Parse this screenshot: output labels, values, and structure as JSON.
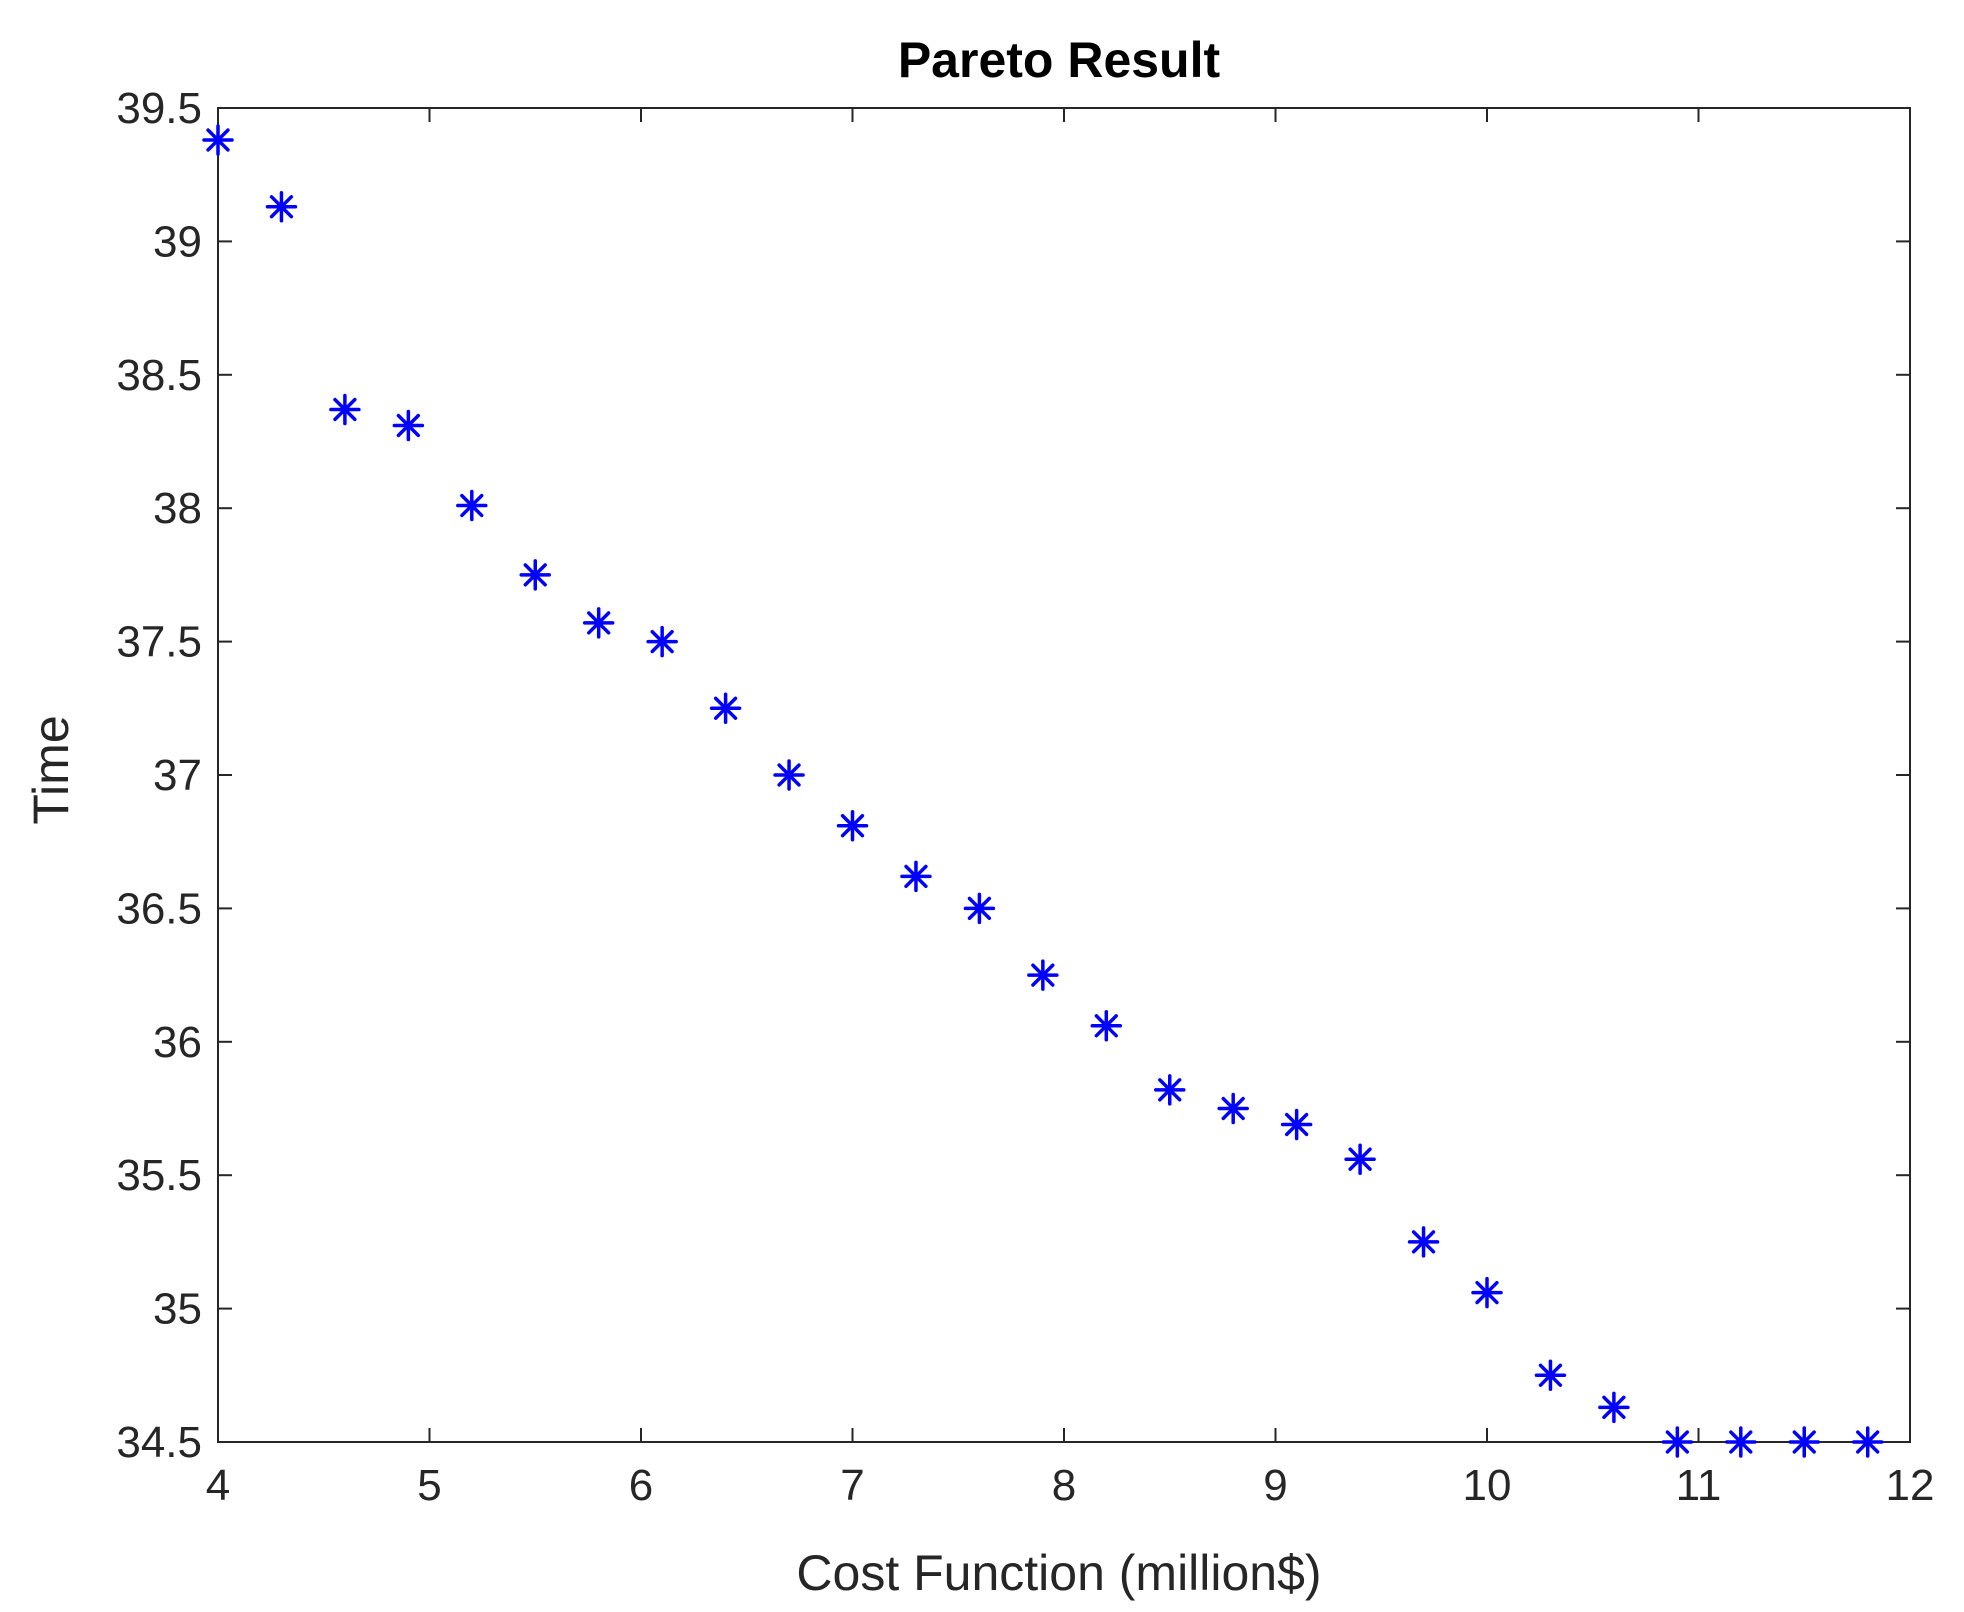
{
  "chart_data": {
    "type": "scatter",
    "title": "Pareto Result",
    "xlabel": "Cost Function (million$)",
    "ylabel": "Time",
    "xlim": [
      4,
      12
    ],
    "ylim": [
      34.5,
      39.5
    ],
    "x_ticks": [
      "4",
      "5",
      "6",
      "7",
      "8",
      "9",
      "10",
      "11",
      "12"
    ],
    "y_ticks": [
      "34.5",
      "35",
      "35.5",
      "36",
      "36.5",
      "37",
      "37.5",
      "38",
      "38.5",
      "39",
      "39.5"
    ],
    "grid": false,
    "marker": "asterisk",
    "marker_color": "#0000ff",
    "axis_color": "#262626",
    "x": [
      4.0,
      4.3,
      4.6,
      4.9,
      5.2,
      5.5,
      5.8,
      6.1,
      6.4,
      6.7,
      7.0,
      7.3,
      7.6,
      7.9,
      8.2,
      8.5,
      8.8,
      9.1,
      9.4,
      9.7,
      10.0,
      10.3,
      10.6,
      10.9,
      11.2,
      11.5,
      11.8
    ],
    "y": [
      39.38,
      39.13,
      38.37,
      38.31,
      38.01,
      37.75,
      37.57,
      37.5,
      37.25,
      37.0,
      36.81,
      36.62,
      36.5,
      36.25,
      36.06,
      35.82,
      35.75,
      35.69,
      35.56,
      35.25,
      35.06,
      34.75,
      34.63,
      34.5,
      34.5,
      34.5,
      34.5
    ]
  }
}
